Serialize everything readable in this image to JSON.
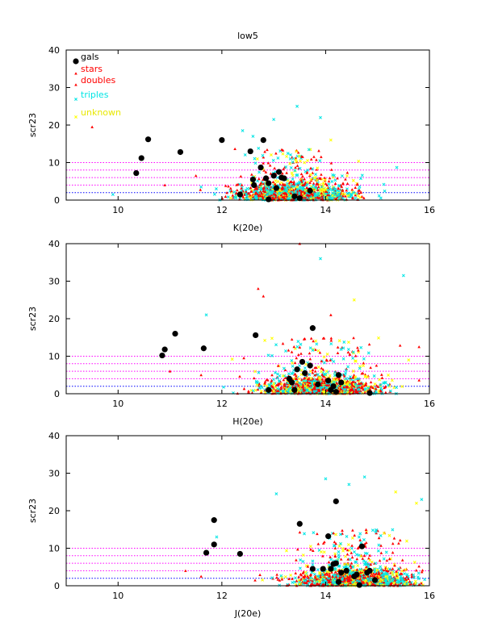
{
  "colors": {
    "gals": "#000000",
    "stars": "#ff0000",
    "doubles": "#ff0000",
    "triples": "#00e5e5",
    "unknown": "#ffff00",
    "hline_pink": "#ff00ff",
    "hline_blue": "#0000ff"
  },
  "legend": [
    {
      "label": "gals",
      "color": "#000000",
      "marker": "filled-circle"
    },
    {
      "label": "stars",
      "color": "#ff0000",
      "marker": "triangle"
    },
    {
      "label": "doubles",
      "color": "#ff0000",
      "marker": "triangle"
    },
    {
      "label": "triples",
      "color": "#00e5e5",
      "marker": "cross"
    },
    {
      "label": "unknown",
      "color": "#ffff00",
      "marker": "cross"
    }
  ],
  "chart_data": [
    {
      "type": "scatter",
      "title": "low5",
      "xlabel": "K(20e)",
      "ylabel": "scr23",
      "xlim": [
        9,
        16
      ],
      "ylim": [
        0,
        40
      ],
      "xticks": [
        10,
        12,
        14,
        16
      ],
      "yticks": [
        0,
        10,
        20,
        30,
        40
      ],
      "legend_position": "top-left",
      "hlines": [
        2,
        4,
        6,
        8,
        10
      ],
      "gals": [
        [
          10.35,
          7.2
        ],
        [
          10.45,
          11.2
        ],
        [
          10.58,
          16.2
        ],
        [
          11.2,
          12.8
        ],
        [
          12.0,
          16.0
        ],
        [
          12.55,
          13.0
        ],
        [
          12.8,
          16.0
        ],
        [
          12.35,
          1.5
        ],
        [
          12.6,
          5.5
        ],
        [
          12.62,
          4.0
        ],
        [
          12.75,
          8.7
        ],
        [
          12.85,
          5.8
        ],
        [
          12.9,
          4.5
        ],
        [
          13.0,
          6.5
        ],
        [
          13.05,
          3.2
        ],
        [
          13.1,
          7.5
        ],
        [
          13.2,
          5.8
        ],
        [
          13.4,
          1.0
        ],
        [
          13.5,
          0.5
        ],
        [
          13.7,
          2.5
        ],
        [
          12.9,
          0.2
        ],
        [
          13.15,
          6.0
        ]
      ],
      "outliers": [
        {
          "cls": "stars",
          "x": 9.5,
          "y": 19.5
        },
        {
          "cls": "triples",
          "x": 13.45,
          "y": 25.0
        },
        {
          "cls": "triples",
          "x": 13.9,
          "y": 22.0
        },
        {
          "cls": "triples",
          "x": 12.4,
          "y": 18.5
        },
        {
          "cls": "triples",
          "x": 13.0,
          "y": 21.5
        },
        {
          "cls": "triples",
          "x": 12.6,
          "y": 17.0
        },
        {
          "cls": "unknown",
          "x": 14.1,
          "y": 16.0
        },
        {
          "cls": "stars",
          "x": 11.5,
          "y": 6.5
        },
        {
          "cls": "triples",
          "x": 11.6,
          "y": 3.5
        },
        {
          "cls": "triples",
          "x": 9.9,
          "y": 1.5
        },
        {
          "cls": "stars",
          "x": 10.9,
          "y": 4.0
        }
      ],
      "cloud": {
        "seed": 11,
        "n": 1400,
        "xmean": 13.4,
        "xsd": 0.55,
        "xmin": 10.8,
        "xmax": 15.7,
        "ymax": 14
      }
    },
    {
      "type": "scatter",
      "title": "",
      "xlabel": "H(20e)",
      "ylabel": "scr23",
      "xlim": [
        9,
        16
      ],
      "ylim": [
        0,
        40
      ],
      "xticks": [
        10,
        12,
        14,
        16
      ],
      "yticks": [
        0,
        10,
        20,
        30,
        40
      ],
      "hlines": [
        2,
        4,
        6,
        8,
        10
      ],
      "gals": [
        [
          10.85,
          10.2
        ],
        [
          10.9,
          11.8
        ],
        [
          11.1,
          16.0
        ],
        [
          11.65,
          12.1
        ],
        [
          12.65,
          15.6
        ],
        [
          12.9,
          1.0
        ],
        [
          13.3,
          4.0
        ],
        [
          13.4,
          1.0
        ],
        [
          13.45,
          6.5
        ],
        [
          13.55,
          8.5
        ],
        [
          13.6,
          5.5
        ],
        [
          13.7,
          7.5
        ],
        [
          13.75,
          17.5
        ],
        [
          13.85,
          2.5
        ],
        [
          14.05,
          3.5
        ],
        [
          14.1,
          1.0
        ],
        [
          14.2,
          0.5
        ],
        [
          14.25,
          5.0
        ],
        [
          14.3,
          3.0
        ],
        [
          14.85,
          0.2
        ],
        [
          13.35,
          3.0
        ],
        [
          14.15,
          2.0
        ]
      ],
      "outliers": [
        {
          "cls": "stars",
          "x": 13.5,
          "y": 40.0
        },
        {
          "cls": "triples",
          "x": 13.9,
          "y": 36.0
        },
        {
          "cls": "triples",
          "x": 15.5,
          "y": 31.5
        },
        {
          "cls": "stars",
          "x": 12.7,
          "y": 28.0
        },
        {
          "cls": "stars",
          "x": 12.8,
          "y": 26.0
        },
        {
          "cls": "unknown",
          "x": 14.55,
          "y": 25.0
        },
        {
          "cls": "triples",
          "x": 11.7,
          "y": 21.0
        },
        {
          "cls": "stars",
          "x": 14.1,
          "y": 21.0
        },
        {
          "cls": "stars",
          "x": 15.8,
          "y": 12.5
        },
        {
          "cls": "unknown",
          "x": 15.6,
          "y": 9.0
        },
        {
          "cls": "stars",
          "x": 11.0,
          "y": 6.0
        },
        {
          "cls": "stars",
          "x": 11.6,
          "y": 5.0
        }
      ],
      "cloud": {
        "seed": 29,
        "n": 1400,
        "xmean": 13.9,
        "xsd": 0.55,
        "xmin": 11.3,
        "xmax": 15.9,
        "ymax": 15
      }
    },
    {
      "type": "scatter",
      "title": "",
      "xlabel": "J(20e)",
      "ylabel": "scr23",
      "xlim": [
        9,
        16
      ],
      "ylim": [
        0,
        40
      ],
      "xticks": [
        10,
        12,
        14,
        16
      ],
      "yticks": [
        0,
        10,
        20,
        30,
        40
      ],
      "hlines": [
        2,
        4,
        6,
        8,
        10
      ],
      "gals": [
        [
          11.7,
          8.8
        ],
        [
          11.85,
          11.0
        ],
        [
          11.85,
          17.5
        ],
        [
          12.35,
          8.5
        ],
        [
          13.5,
          16.5
        ],
        [
          13.75,
          4.5
        ],
        [
          13.95,
          4.5
        ],
        [
          14.05,
          13.2
        ],
        [
          14.1,
          4.5
        ],
        [
          14.15,
          5.8
        ],
        [
          14.2,
          22.5
        ],
        [
          14.25,
          1.0
        ],
        [
          14.3,
          3.5
        ],
        [
          14.4,
          4.0
        ],
        [
          14.55,
          2.5
        ],
        [
          14.65,
          0.2
        ],
        [
          14.7,
          10.5
        ],
        [
          14.8,
          3.5
        ],
        [
          14.85,
          4.0
        ],
        [
          14.95,
          1.5
        ],
        [
          14.2,
          6.0
        ],
        [
          14.6,
          3.0
        ]
      ],
      "outliers": [
        {
          "cls": "triples",
          "x": 14.75,
          "y": 29.0
        },
        {
          "cls": "triples",
          "x": 14.0,
          "y": 28.5
        },
        {
          "cls": "triples",
          "x": 14.45,
          "y": 27.0
        },
        {
          "cls": "unknown",
          "x": 15.35,
          "y": 25.0
        },
        {
          "cls": "triples",
          "x": 13.05,
          "y": 24.5
        },
        {
          "cls": "unknown",
          "x": 15.75,
          "y": 22.0
        },
        {
          "cls": "triples",
          "x": 15.85,
          "y": 23.0
        },
        {
          "cls": "triples",
          "x": 11.9,
          "y": 13.0
        },
        {
          "cls": "stars",
          "x": 11.3,
          "y": 4.0
        },
        {
          "cls": "stars",
          "x": 11.6,
          "y": 2.5
        }
      ],
      "cloud": {
        "seed": 47,
        "n": 1400,
        "xmean": 14.55,
        "xsd": 0.55,
        "xmin": 11.4,
        "xmax": 15.95,
        "ymax": 15
      }
    }
  ]
}
